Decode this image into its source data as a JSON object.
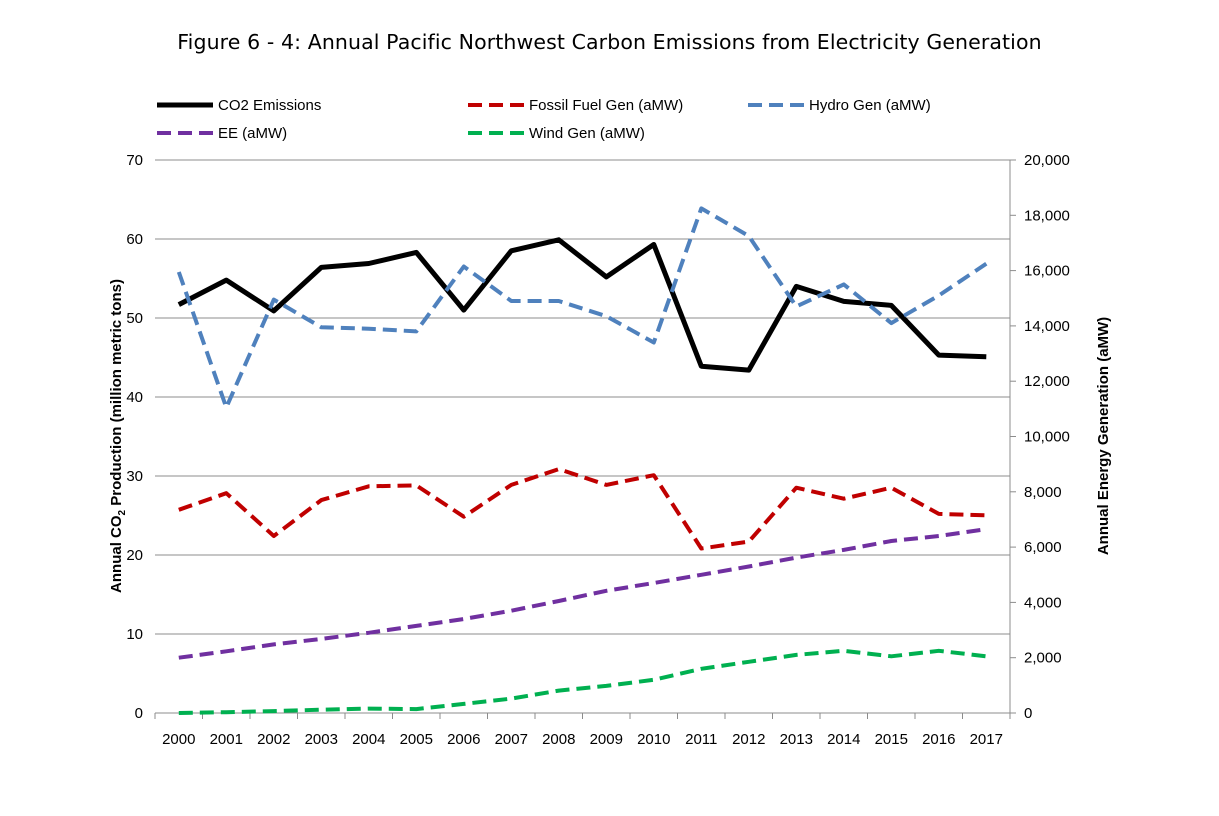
{
  "page_title": "Figure 6 - 4: Annual Pacific Northwest Carbon Emissions from Electricity Generation",
  "chart_data": {
    "type": "line",
    "title": "Figure 6 - 4: Annual Pacific Northwest Carbon Emissions from Electricity Generation",
    "categories": [
      "2000",
      "2001",
      "2002",
      "2003",
      "2004",
      "2005",
      "2006",
      "2007",
      "2008",
      "2009",
      "2010",
      "2011",
      "2012",
      "2013",
      "2014",
      "2015",
      "2016",
      "2017"
    ],
    "ylabel_left_prefix": "Annual CO",
    "ylabel_left_sub": "2",
    "ylabel_left_suffix": " Production (million metric tons)",
    "ylabel_right": "Annual Energy Generation (aMW)",
    "ylim_left": [
      0,
      70
    ],
    "yticks_left": [
      "0",
      "10",
      "20",
      "30",
      "40",
      "50",
      "60",
      "70"
    ],
    "ylim_right": [
      0,
      20000
    ],
    "yticks_right": [
      "0",
      "2,000",
      "4,000",
      "6,000",
      "8,000",
      "10,000",
      "12,000",
      "14,000",
      "16,000",
      "18,000",
      "20,000"
    ],
    "grid": true,
    "legend_position": "top",
    "series": [
      {
        "name": "CO2 Emissions",
        "axis": "left",
        "color": "#000000",
        "dash": "solid",
        "values": [
          51.7,
          54.8,
          50.9,
          56.4,
          56.9,
          58.3,
          51.0,
          58.5,
          59.9,
          55.2,
          59.3,
          43.9,
          43.4,
          54.0,
          52.1,
          51.6,
          45.3,
          45.1
        ]
      },
      {
        "name": "Fossil Fuel Gen (aMW)",
        "axis": "right",
        "color": "#c00000",
        "dash": "dashed",
        "values": [
          7350,
          7950,
          6400,
          7700,
          8200,
          8230,
          7100,
          8250,
          8820,
          8250,
          8600,
          5950,
          6200,
          8150,
          7750,
          8150,
          7200,
          7150
        ]
      },
      {
        "name": "Hydro Gen (aMW)",
        "axis": "right",
        "color": "#4f81bd",
        "dash": "dashed",
        "values": [
          15950,
          11050,
          14950,
          13950,
          13900,
          13800,
          16150,
          14900,
          14900,
          14350,
          13400,
          18250,
          17250,
          14700,
          15500,
          14100,
          15100,
          16250
        ]
      },
      {
        "name": "EE (aMW)",
        "axis": "right",
        "color": "#7030a0",
        "dash": "dashed",
        "values": [
          2000,
          2230,
          2480,
          2680,
          2900,
          3150,
          3400,
          3700,
          4050,
          4420,
          4700,
          5000,
          5300,
          5620,
          5900,
          6220,
          6400,
          6650
        ]
      },
      {
        "name": "Wind Gen (aMW)",
        "axis": "right",
        "color": "#00b050",
        "dash": "dashed",
        "values": [
          0,
          30,
          70,
          120,
          160,
          140,
          330,
          520,
          810,
          980,
          1200,
          1600,
          1850,
          2100,
          2250,
          2050,
          2250,
          2050
        ]
      }
    ]
  }
}
